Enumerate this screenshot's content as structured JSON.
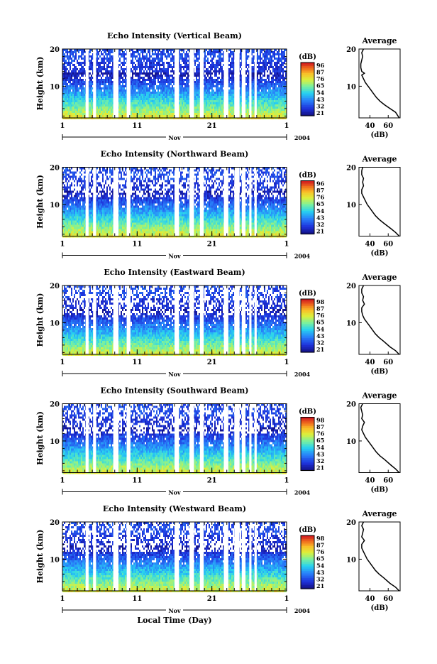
{
  "chart_data": [
    {
      "type": "heatmap",
      "title": "Echo Intensity (Vertical Beam)",
      "ylabel": "Height (km)",
      "xlabel": "",
      "yticks": [
        "20",
        "10"
      ],
      "ylim": [
        1.5,
        20
      ],
      "xticks": [
        "1",
        "11",
        "21",
        "1"
      ],
      "xlim": [
        1,
        31
      ],
      "month_label": "Nov",
      "year_label": "2004",
      "colorbar": {
        "unit": "(dB)",
        "ticks": [
          "96",
          "87",
          "76",
          "65",
          "54",
          "43",
          "32",
          "21"
        ],
        "range": [
          21,
          96
        ]
      },
      "data_gaps_day": [
        [
          4.1,
          4.5
        ],
        [
          5.1,
          5.5
        ],
        [
          7.8,
          8.5
        ],
        [
          9.6,
          10.1
        ],
        [
          16.0,
          16.6
        ],
        [
          18.0,
          18.6
        ],
        [
          19.4,
          19.9
        ],
        [
          22.6,
          23.2
        ],
        [
          24.0,
          24.7
        ],
        [
          25.0,
          25.5
        ],
        [
          26.0,
          26.3
        ],
        [
          26.7,
          27.0
        ]
      ],
      "profile": {
        "title": "Average",
        "xlabel": "(dB)",
        "xticks": [
          "40",
          "60"
        ],
        "xlim": [
          28,
          73
        ],
        "yticks": [
          "20",
          "10"
        ],
        "ylim": [
          1.5,
          20
        ],
        "height_km": [
          1.5,
          3,
          4,
          5,
          6,
          7,
          8,
          9,
          10,
          11,
          12,
          13,
          13.5,
          14,
          15,
          16,
          17,
          18,
          19,
          20
        ],
        "avg_db": [
          72,
          68,
          62,
          56,
          51,
          47,
          44,
          41,
          38,
          35,
          33,
          31,
          34,
          31,
          30,
          30,
          31,
          32,
          31,
          33
        ]
      }
    },
    {
      "type": "heatmap",
      "title": "Echo Intensity (Northward Beam)",
      "ylabel": "Height (km)",
      "xlabel": "",
      "yticks": [
        "20",
        "10"
      ],
      "ylim": [
        1.5,
        20
      ],
      "xticks": [
        "1",
        "11",
        "21",
        "1"
      ],
      "xlim": [
        1,
        31
      ],
      "month_label": "Nov",
      "year_label": "2004",
      "colorbar": {
        "unit": "(dB)",
        "ticks": [
          "96",
          "87",
          "76",
          "65",
          "54",
          "43",
          "32",
          "21"
        ],
        "range": [
          21,
          96
        ]
      },
      "data_gaps_day": [
        [
          4.1,
          4.5
        ],
        [
          5.1,
          5.5
        ],
        [
          7.8,
          8.5
        ],
        [
          9.6,
          10.1
        ],
        [
          16.0,
          16.6
        ],
        [
          18.0,
          18.6
        ],
        [
          19.4,
          19.9
        ],
        [
          22.6,
          23.2
        ],
        [
          24.0,
          24.7
        ],
        [
          25.0,
          25.5
        ],
        [
          26.0,
          26.3
        ],
        [
          26.7,
          27.0
        ]
      ],
      "profile": {
        "title": "Average",
        "xlabel": "(dB)",
        "xticks": [
          "40",
          "60"
        ],
        "xlim": [
          28,
          73
        ],
        "yticks": [
          "20",
          "10"
        ],
        "ylim": [
          1.5,
          20
        ],
        "height_km": [
          1.5,
          2.5,
          3.5,
          5,
          6,
          7,
          8,
          9,
          10,
          11,
          12,
          13,
          14,
          15,
          16,
          17,
          18,
          19,
          20
        ],
        "avg_db": [
          72,
          68,
          63,
          55,
          50,
          46,
          43,
          40,
          37,
          35,
          33,
          31,
          31,
          33,
          32,
          33,
          31,
          31,
          32
        ]
      }
    },
    {
      "type": "heatmap",
      "title": "Echo Intensity (Eastward Beam)",
      "ylabel": "Height (km)",
      "xlabel": "",
      "yticks": [
        "20",
        "10"
      ],
      "ylim": [
        1.5,
        20
      ],
      "xticks": [
        "1",
        "11",
        "21",
        "1"
      ],
      "xlim": [
        1,
        31
      ],
      "month_label": "Nov",
      "year_label": "2004",
      "colorbar": {
        "unit": "(dB)",
        "ticks": [
          "98",
          "87",
          "76",
          "65",
          "54",
          "43",
          "32",
          "21"
        ],
        "range": [
          21,
          98
        ]
      },
      "data_gaps_day": [
        [
          4.1,
          4.5
        ],
        [
          5.1,
          5.5
        ],
        [
          7.8,
          8.5
        ],
        [
          9.6,
          10.1
        ],
        [
          16.0,
          16.6
        ],
        [
          18.0,
          18.6
        ],
        [
          19.4,
          19.9
        ],
        [
          22.6,
          23.2
        ],
        [
          24.0,
          24.7
        ],
        [
          25.0,
          25.5
        ],
        [
          26.0,
          26.3
        ],
        [
          26.7,
          27.0
        ]
      ],
      "profile": {
        "title": "Average",
        "xlabel": "(dB)",
        "xticks": [
          "40",
          "60"
        ],
        "xlim": [
          28,
          73
        ],
        "yticks": [
          "20",
          "10"
        ],
        "ylim": [
          1.5,
          20
        ],
        "height_km": [
          1.5,
          2.5,
          3.5,
          5,
          6,
          7,
          8,
          9,
          10,
          11,
          12,
          13,
          14,
          15,
          16,
          17,
          18,
          19,
          20
        ],
        "avg_db": [
          72,
          68,
          62,
          55,
          50,
          46,
          43,
          40,
          37,
          34,
          32,
          31,
          31,
          34,
          32,
          33,
          31,
          31,
          33
        ]
      }
    },
    {
      "type": "heatmap",
      "title": "Echo Intensity (Southward Beam)",
      "ylabel": "Height (km)",
      "xlabel": "",
      "yticks": [
        "20",
        "10"
      ],
      "ylim": [
        1.5,
        20
      ],
      "xticks": [
        "1",
        "11",
        "21",
        "1"
      ],
      "xlim": [
        1,
        31
      ],
      "month_label": "Nov",
      "year_label": "2004",
      "colorbar": {
        "unit": "(dB)",
        "ticks": [
          "98",
          "87",
          "76",
          "65",
          "54",
          "43",
          "32",
          "21"
        ],
        "range": [
          21,
          98
        ]
      },
      "data_gaps_day": [
        [
          4.1,
          4.5
        ],
        [
          5.1,
          5.5
        ],
        [
          7.8,
          8.5
        ],
        [
          9.6,
          10.1
        ],
        [
          16.0,
          16.6
        ],
        [
          18.0,
          18.6
        ],
        [
          19.4,
          19.9
        ],
        [
          22.6,
          23.2
        ],
        [
          24.0,
          24.7
        ],
        [
          25.0,
          25.5
        ],
        [
          26.0,
          26.3
        ],
        [
          26.7,
          27.0
        ]
      ],
      "profile": {
        "title": "Average",
        "xlabel": "(dB)",
        "xticks": [
          "40",
          "60"
        ],
        "xlim": [
          28,
          73
        ],
        "yticks": [
          "20",
          "10"
        ],
        "ylim": [
          1.5,
          20
        ],
        "height_km": [
          1.5,
          2.5,
          3.5,
          5,
          6,
          7,
          8,
          9,
          10,
          11,
          12,
          13,
          14,
          15,
          16,
          17,
          18,
          19,
          20
        ],
        "avg_db": [
          72,
          68,
          63,
          56,
          51,
          47,
          44,
          41,
          38,
          35,
          33,
          31,
          32,
          34,
          31,
          32,
          31,
          30,
          32
        ]
      }
    },
    {
      "type": "heatmap",
      "title": "Echo Intensity (Westward Beam)",
      "ylabel": "Height (km)",
      "xlabel": "Local Time (Day)",
      "yticks": [
        "20",
        "10"
      ],
      "ylim": [
        1.5,
        20
      ],
      "xticks": [
        "1",
        "11",
        "21",
        "1"
      ],
      "xlim": [
        1,
        31
      ],
      "month_label": "Nov",
      "year_label": "2004",
      "colorbar": {
        "unit": "(dB)",
        "ticks": [
          "98",
          "87",
          "76",
          "65",
          "54",
          "43",
          "32",
          "21"
        ],
        "range": [
          21,
          98
        ]
      },
      "data_gaps_day": [
        [
          4.1,
          4.5
        ],
        [
          5.1,
          5.5
        ],
        [
          7.8,
          8.5
        ],
        [
          9.6,
          10.1
        ],
        [
          16.0,
          16.6
        ],
        [
          18.0,
          18.6
        ],
        [
          19.4,
          19.9
        ],
        [
          22.6,
          23.2
        ],
        [
          24.0,
          24.7
        ],
        [
          25.0,
          25.5
        ],
        [
          26.0,
          26.3
        ],
        [
          26.7,
          27.0
        ]
      ],
      "profile": {
        "title": "Average",
        "xlabel": "(dB)",
        "xticks": [
          "40",
          "60"
        ],
        "xlim": [
          28,
          73
        ],
        "yticks": [
          "20",
          "10"
        ],
        "ylim": [
          1.5,
          20
        ],
        "height_km": [
          1.5,
          2.5,
          3.5,
          5,
          6,
          7,
          8,
          9,
          10,
          11,
          12,
          13,
          14,
          15,
          16,
          17,
          18,
          19,
          20
        ],
        "avg_db": [
          72,
          68,
          62,
          55,
          50,
          46,
          43,
          40,
          37,
          35,
          33,
          31,
          31,
          34,
          31,
          32,
          33,
          31,
          33
        ]
      }
    }
  ]
}
